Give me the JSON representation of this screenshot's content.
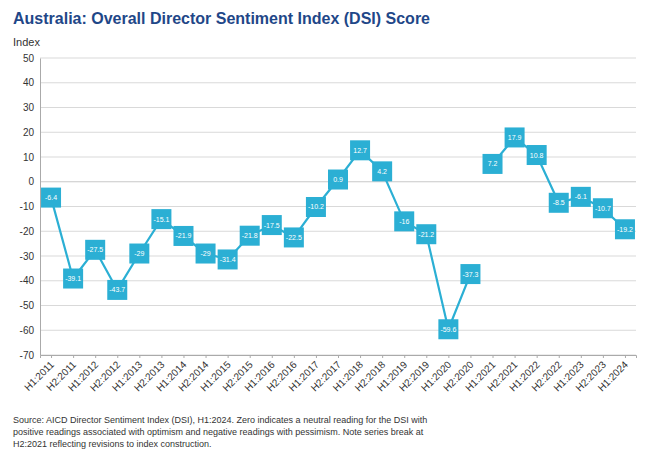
{
  "chart_data": {
    "type": "line",
    "title": "Australia: Overall Director Sentiment Index (DSI) Score",
    "ylabel": "Index",
    "source": "Source: AICD Director Sentiment Index (DSI), H1:2024.  Zero indicates a neutral reading for the DSI with\npositive readings associated with optimism  and negative readings with pessimism. Note series break at\nH2:2021 reflecting revisions to index construction.",
    "categories": [
      "H1:2011",
      "H2:2011",
      "H1:2012",
      "H2:2012",
      "H1:2013",
      "H2:2013",
      "H1:2014",
      "H2:2014",
      "H1:2015",
      "H2:2015",
      "H1:2016",
      "H2:2016",
      "H1:2017",
      "H2:2017",
      "H1:2018",
      "H2:2018",
      "H1:2019",
      "H2:2019",
      "H1:2020",
      "H2:2020",
      "H1:2021",
      "H2:2021",
      "H1:2022",
      "H2:2022",
      "H1:2023",
      "H2:2023",
      "H1:2024"
    ],
    "series": [
      {
        "color": "#2BAFD4",
        "values": [
          -6.4,
          -39.1,
          -27.5,
          -43.7,
          -29.0,
          -15.1,
          -21.9,
          -29.0,
          -31.4,
          -21.8,
          -17.5,
          -22.5,
          -10.2,
          0.9,
          12.7,
          4.2,
          -16.0,
          -21.2,
          -59.6,
          -37.3,
          null,
          null,
          null,
          null,
          null,
          null,
          null
        ]
      },
      {
        "color": "#2BAFD4",
        "values": [
          null,
          null,
          null,
          null,
          null,
          null,
          null,
          null,
          null,
          null,
          null,
          null,
          null,
          null,
          null,
          null,
          null,
          null,
          null,
          null,
          7.2,
          17.9,
          10.8,
          -8.5,
          -6.1,
          -10.7,
          -19.2
        ]
      }
    ],
    "ylim": [
      -70,
      50
    ],
    "yticks": [
      -70,
      -60,
      -50,
      -40,
      -30,
      -20,
      -10,
      0,
      10,
      20,
      30,
      40,
      50
    ],
    "grid": true,
    "marker": "square",
    "data_labels": true
  }
}
